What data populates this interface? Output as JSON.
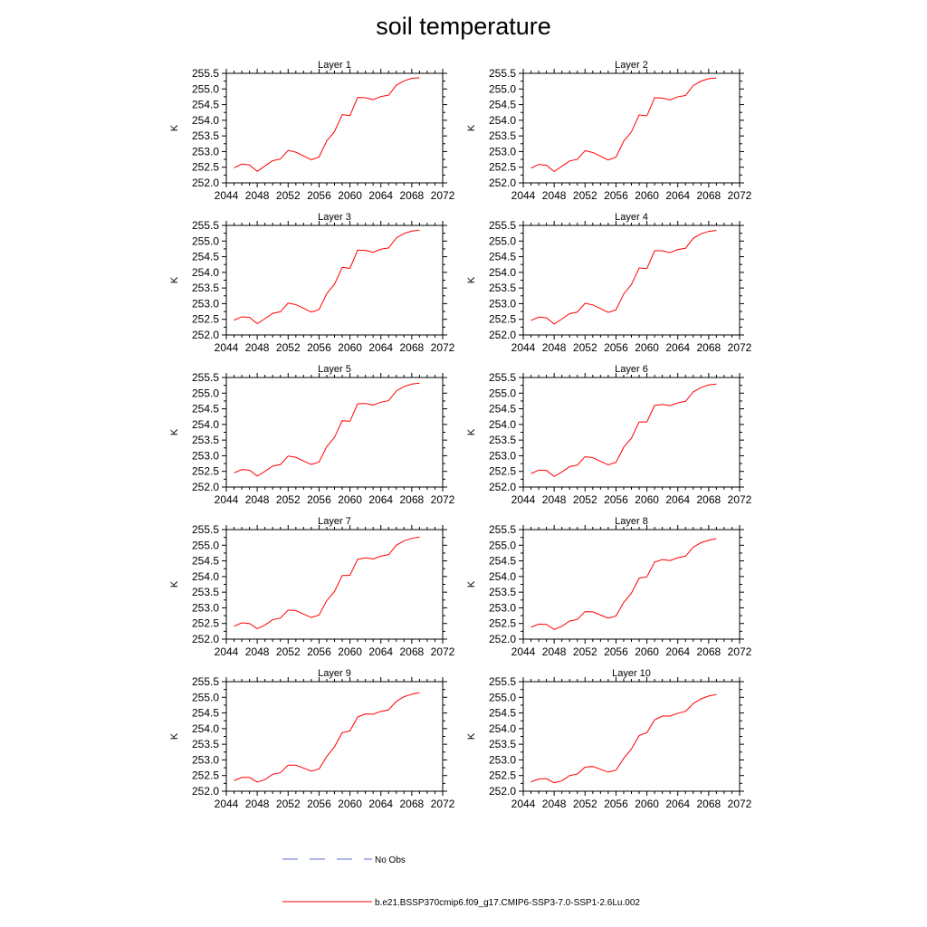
{
  "title": "soil temperature",
  "colors": {
    "model": "#ff0000",
    "obs": "#5a6fd6"
  },
  "legend": {
    "obs_label": "No Obs",
    "model_label": "b.e21.BSSP370cmip6.f09_g17.CMIP6-SSP3-7.0-SSP1-2.6Lu.002"
  },
  "chart_data": [
    {
      "type": "line",
      "title": "Layer 1",
      "ylabel": "K",
      "xlim": [
        2044,
        2072
      ],
      "ylim": [
        252.0,
        255.5
      ],
      "xticks": [
        "2044",
        "2048",
        "2052",
        "2056",
        "2060",
        "2064",
        "2068",
        "2072"
      ],
      "yticks": [
        "252.0",
        "252.5",
        "253.0",
        "253.5",
        "254.0",
        "254.5",
        "255.0",
        "255.5"
      ],
      "x": [
        2045,
        2046,
        2047,
        2048,
        2049,
        2050,
        2051,
        2052,
        2053,
        2054,
        2055,
        2056,
        2057,
        2058,
        2059,
        2060,
        2061,
        2062,
        2063,
        2064,
        2065,
        2066,
        2067,
        2068,
        2069
      ],
      "series": [
        {
          "values": [
            252.48,
            252.6,
            252.57,
            252.37,
            252.54,
            252.71,
            252.76,
            253.04,
            252.98,
            252.86,
            252.74,
            252.83,
            253.34,
            253.64,
            254.18,
            254.15,
            254.73,
            254.72,
            254.66,
            254.76,
            254.8,
            255.12,
            255.26,
            255.34,
            255.36
          ]
        }
      ]
    },
    {
      "type": "line",
      "title": "Layer 2",
      "ylabel": "K",
      "xlim": [
        2044,
        2072
      ],
      "ylim": [
        252.0,
        255.5
      ],
      "xticks": [
        "2044",
        "2048",
        "2052",
        "2056",
        "2060",
        "2064",
        "2068",
        "2072"
      ],
      "yticks": [
        "252.0",
        "252.5",
        "253.0",
        "253.5",
        "254.0",
        "254.5",
        "255.0",
        "255.5"
      ],
      "x": [
        2045,
        2046,
        2047,
        2048,
        2049,
        2050,
        2051,
        2052,
        2053,
        2054,
        2055,
        2056,
        2057,
        2058,
        2059,
        2060,
        2061,
        2062,
        2063,
        2064,
        2065,
        2066,
        2067,
        2068,
        2069
      ],
      "series": [
        {
          "values": [
            252.47,
            252.59,
            252.56,
            252.36,
            252.53,
            252.7,
            252.75,
            253.03,
            252.97,
            252.85,
            252.73,
            252.82,
            253.33,
            253.63,
            254.17,
            254.14,
            254.72,
            254.71,
            254.65,
            254.75,
            254.79,
            255.11,
            255.25,
            255.33,
            255.35
          ]
        }
      ]
    },
    {
      "type": "line",
      "title": "Layer 3",
      "ylabel": "K",
      "xlim": [
        2044,
        2072
      ],
      "ylim": [
        252.0,
        255.5
      ],
      "xticks": [
        "2044",
        "2048",
        "2052",
        "2056",
        "2060",
        "2064",
        "2068",
        "2072"
      ],
      "yticks": [
        "252.0",
        "252.5",
        "253.0",
        "253.5",
        "254.0",
        "254.5",
        "255.0",
        "255.5"
      ],
      "x": [
        2045,
        2046,
        2047,
        2048,
        2049,
        2050,
        2051,
        2052,
        2053,
        2054,
        2055,
        2056,
        2057,
        2058,
        2059,
        2060,
        2061,
        2062,
        2063,
        2064,
        2065,
        2066,
        2067,
        2068,
        2069
      ],
      "series": [
        {
          "values": [
            252.47,
            252.58,
            252.56,
            252.36,
            252.52,
            252.69,
            252.74,
            253.02,
            252.97,
            252.85,
            252.73,
            252.81,
            253.32,
            253.62,
            254.16,
            254.13,
            254.71,
            254.7,
            254.64,
            254.74,
            254.78,
            255.1,
            255.24,
            255.32,
            255.35
          ]
        }
      ]
    },
    {
      "type": "line",
      "title": "Layer 4",
      "ylabel": "K",
      "xlim": [
        2044,
        2072
      ],
      "ylim": [
        252.0,
        255.5
      ],
      "xticks": [
        "2044",
        "2048",
        "2052",
        "2056",
        "2060",
        "2064",
        "2068",
        "2072"
      ],
      "yticks": [
        "252.0",
        "252.5",
        "253.0",
        "253.5",
        "254.0",
        "254.5",
        "255.0",
        "255.5"
      ],
      "x": [
        2045,
        2046,
        2047,
        2048,
        2049,
        2050,
        2051,
        2052,
        2053,
        2054,
        2055,
        2056,
        2057,
        2058,
        2059,
        2060,
        2061,
        2062,
        2063,
        2064,
        2065,
        2066,
        2067,
        2068,
        2069
      ],
      "series": [
        {
          "values": [
            252.46,
            252.57,
            252.55,
            252.35,
            252.51,
            252.68,
            252.73,
            253.01,
            252.96,
            252.84,
            252.72,
            252.8,
            253.31,
            253.61,
            254.14,
            254.12,
            254.69,
            254.69,
            254.63,
            254.73,
            254.77,
            255.09,
            255.23,
            255.31,
            255.34
          ]
        }
      ]
    },
    {
      "type": "line",
      "title": "Layer 5",
      "ylabel": "K",
      "xlim": [
        2044,
        2072
      ],
      "ylim": [
        252.0,
        255.5
      ],
      "xticks": [
        "2044",
        "2048",
        "2052",
        "2056",
        "2060",
        "2064",
        "2068",
        "2072"
      ],
      "yticks": [
        "252.0",
        "252.5",
        "253.0",
        "253.5",
        "254.0",
        "254.5",
        "255.0",
        "255.5"
      ],
      "x": [
        2045,
        2046,
        2047,
        2048,
        2049,
        2050,
        2051,
        2052,
        2053,
        2054,
        2055,
        2056,
        2057,
        2058,
        2059,
        2060,
        2061,
        2062,
        2063,
        2064,
        2065,
        2066,
        2067,
        2068,
        2069
      ],
      "series": [
        {
          "values": [
            252.45,
            252.56,
            252.54,
            252.35,
            252.5,
            252.67,
            252.72,
            252.99,
            252.95,
            252.83,
            252.72,
            252.8,
            253.29,
            253.59,
            254.12,
            254.1,
            254.66,
            254.67,
            254.62,
            254.71,
            254.76,
            255.07,
            255.21,
            255.29,
            255.32
          ]
        }
      ]
    },
    {
      "type": "line",
      "title": "Layer 6",
      "ylabel": "K",
      "xlim": [
        2044,
        2072
      ],
      "ylim": [
        252.0,
        255.5
      ],
      "xticks": [
        "2044",
        "2048",
        "2052",
        "2056",
        "2060",
        "2064",
        "2068",
        "2072"
      ],
      "yticks": [
        "252.0",
        "252.5",
        "253.0",
        "253.5",
        "254.0",
        "254.5",
        "255.0",
        "255.5"
      ],
      "x": [
        2045,
        2046,
        2047,
        2048,
        2049,
        2050,
        2051,
        2052,
        2053,
        2054,
        2055,
        2056,
        2057,
        2058,
        2059,
        2060,
        2061,
        2062,
        2063,
        2064,
        2065,
        2066,
        2067,
        2068,
        2069
      ],
      "series": [
        {
          "values": [
            252.43,
            252.54,
            252.53,
            252.34,
            252.48,
            252.65,
            252.7,
            252.97,
            252.94,
            252.82,
            252.71,
            252.79,
            253.27,
            253.56,
            254.08,
            254.08,
            254.61,
            254.64,
            254.6,
            254.69,
            254.74,
            255.04,
            255.18,
            255.26,
            255.29
          ]
        }
      ]
    },
    {
      "type": "line",
      "title": "Layer 7",
      "ylabel": "K",
      "xlim": [
        2044,
        2072
      ],
      "ylim": [
        252.0,
        255.5
      ],
      "xticks": [
        "2044",
        "2048",
        "2052",
        "2056",
        "2060",
        "2064",
        "2068",
        "2072"
      ],
      "yticks": [
        "252.0",
        "252.5",
        "253.0",
        "253.5",
        "254.0",
        "254.5",
        "255.0",
        "255.5"
      ],
      "x": [
        2045,
        2046,
        2047,
        2048,
        2049,
        2050,
        2051,
        2052,
        2053,
        2054,
        2055,
        2056,
        2057,
        2058,
        2059,
        2060,
        2061,
        2062,
        2063,
        2064,
        2065,
        2066,
        2067,
        2068,
        2069
      ],
      "series": [
        {
          "values": [
            252.41,
            252.52,
            252.5,
            252.33,
            252.45,
            252.62,
            252.67,
            252.93,
            252.91,
            252.8,
            252.69,
            252.77,
            253.23,
            253.52,
            254.03,
            254.04,
            254.55,
            254.6,
            254.56,
            254.65,
            254.7,
            255.0,
            255.14,
            255.22,
            255.26
          ]
        }
      ]
    },
    {
      "type": "line",
      "title": "Layer 8",
      "ylabel": "K",
      "xlim": [
        2044,
        2072
      ],
      "ylim": [
        252.0,
        255.5
      ],
      "xticks": [
        "2044",
        "2048",
        "2052",
        "2056",
        "2060",
        "2064",
        "2068",
        "2072"
      ],
      "yticks": [
        "252.0",
        "252.5",
        "253.0",
        "253.5",
        "254.0",
        "254.5",
        "255.0",
        "255.5"
      ],
      "x": [
        2045,
        2046,
        2047,
        2048,
        2049,
        2050,
        2051,
        2052,
        2053,
        2054,
        2055,
        2056,
        2057,
        2058,
        2059,
        2060,
        2061,
        2062,
        2063,
        2064,
        2065,
        2066,
        2067,
        2068,
        2069
      ],
      "series": [
        {
          "values": [
            252.38,
            252.48,
            252.47,
            252.31,
            252.41,
            252.58,
            252.63,
            252.88,
            252.87,
            252.77,
            252.67,
            252.74,
            253.17,
            253.47,
            253.95,
            253.99,
            254.46,
            254.54,
            254.51,
            254.6,
            254.65,
            254.94,
            255.08,
            255.16,
            255.21
          ]
        }
      ]
    },
    {
      "type": "line",
      "title": "Layer 9",
      "ylabel": "K",
      "xlim": [
        2044,
        2072
      ],
      "ylim": [
        252.0,
        255.5
      ],
      "xticks": [
        "2044",
        "2048",
        "2052",
        "2056",
        "2060",
        "2064",
        "2068",
        "2072"
      ],
      "yticks": [
        "252.0",
        "252.5",
        "253.0",
        "253.5",
        "254.0",
        "254.5",
        "255.0",
        "255.5"
      ],
      "x": [
        2045,
        2046,
        2047,
        2048,
        2049,
        2050,
        2051,
        2052,
        2053,
        2054,
        2055,
        2056,
        2057,
        2058,
        2059,
        2060,
        2061,
        2062,
        2063,
        2064,
        2065,
        2066,
        2067,
        2068,
        2069
      ],
      "series": [
        {
          "values": [
            252.34,
            252.44,
            252.44,
            252.29,
            252.37,
            252.54,
            252.59,
            252.83,
            252.83,
            252.74,
            252.64,
            252.71,
            253.11,
            253.42,
            253.87,
            253.93,
            254.37,
            254.47,
            254.46,
            254.55,
            254.6,
            254.87,
            255.02,
            255.1,
            255.15
          ]
        }
      ]
    },
    {
      "type": "line",
      "title": "Layer 10",
      "ylabel": "K",
      "xlim": [
        2044,
        2072
      ],
      "ylim": [
        252.0,
        255.5
      ],
      "xticks": [
        "2044",
        "2048",
        "2052",
        "2056",
        "2060",
        "2064",
        "2068",
        "2072"
      ],
      "yticks": [
        "252.0",
        "252.5",
        "253.0",
        "253.5",
        "254.0",
        "254.5",
        "255.0",
        "255.5"
      ],
      "x": [
        2045,
        2046,
        2047,
        2048,
        2049,
        2050,
        2051,
        2052,
        2053,
        2054,
        2055,
        2056,
        2057,
        2058,
        2059,
        2060,
        2061,
        2062,
        2063,
        2064,
        2065,
        2066,
        2067,
        2068,
        2069
      ],
      "series": [
        {
          "values": [
            252.3,
            252.39,
            252.4,
            252.27,
            252.33,
            252.5,
            252.55,
            252.77,
            252.79,
            252.7,
            252.61,
            252.67,
            253.05,
            253.35,
            253.78,
            253.87,
            254.28,
            254.4,
            254.4,
            254.49,
            254.55,
            254.8,
            254.95,
            255.04,
            255.09
          ]
        }
      ]
    }
  ]
}
